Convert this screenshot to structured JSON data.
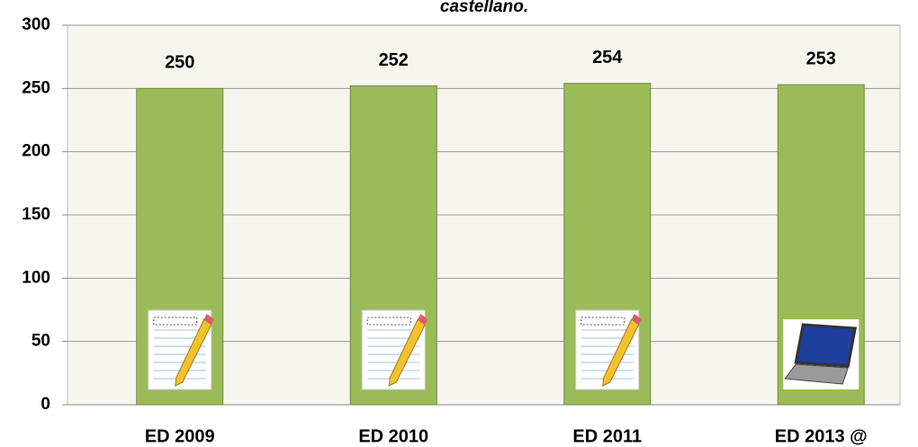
{
  "chart_data": {
    "type": "bar",
    "title": "castellano.",
    "categories": [
      "ED 2009",
      "ED 2010",
      "ED 2011",
      "ED 2013 @"
    ],
    "values": [
      250,
      252,
      254,
      253
    ],
    "color": "#9bbb59",
    "ylim": [
      0,
      300
    ],
    "yticks": [
      0,
      50,
      100,
      150,
      200,
      250,
      300
    ],
    "grid": true
  }
}
